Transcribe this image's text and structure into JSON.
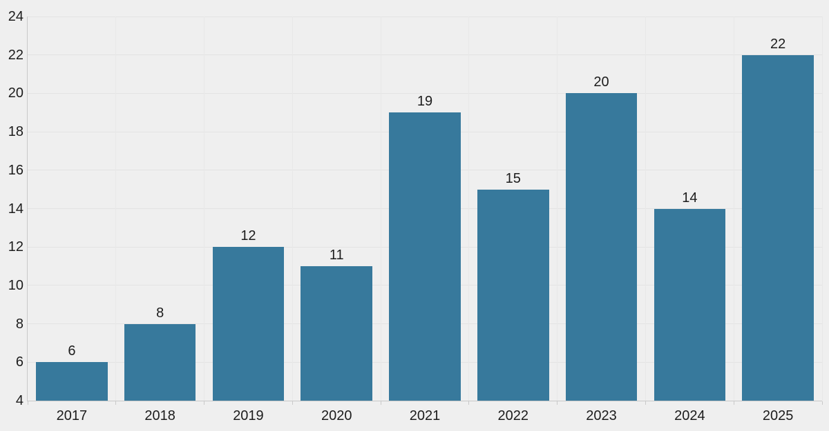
{
  "chart_data": {
    "type": "bar",
    "categories": [
      "2017",
      "2018",
      "2019",
      "2020",
      "2021",
      "2022",
      "2023",
      "2024",
      "2025"
    ],
    "values": [
      6,
      8,
      12,
      11,
      19,
      15,
      20,
      14,
      22
    ],
    "data_labels": [
      "6",
      "8",
      "12",
      "11",
      "19",
      "15",
      "20",
      "14",
      "22"
    ],
    "title": "",
    "xlabel": "",
    "ylabel": "",
    "ylim": [
      4,
      24
    ],
    "yticks": [
      4,
      6,
      8,
      10,
      12,
      14,
      16,
      18,
      20,
      22,
      24
    ],
    "grid": true,
    "legend": false,
    "colors": {
      "bar": "#37799c",
      "background": "#efefef",
      "gridline_h": "#e3e3e3",
      "gridline_v": "#e8e8e8",
      "axis_line": "#c9c9c9",
      "text": "#1c1c1c"
    }
  }
}
